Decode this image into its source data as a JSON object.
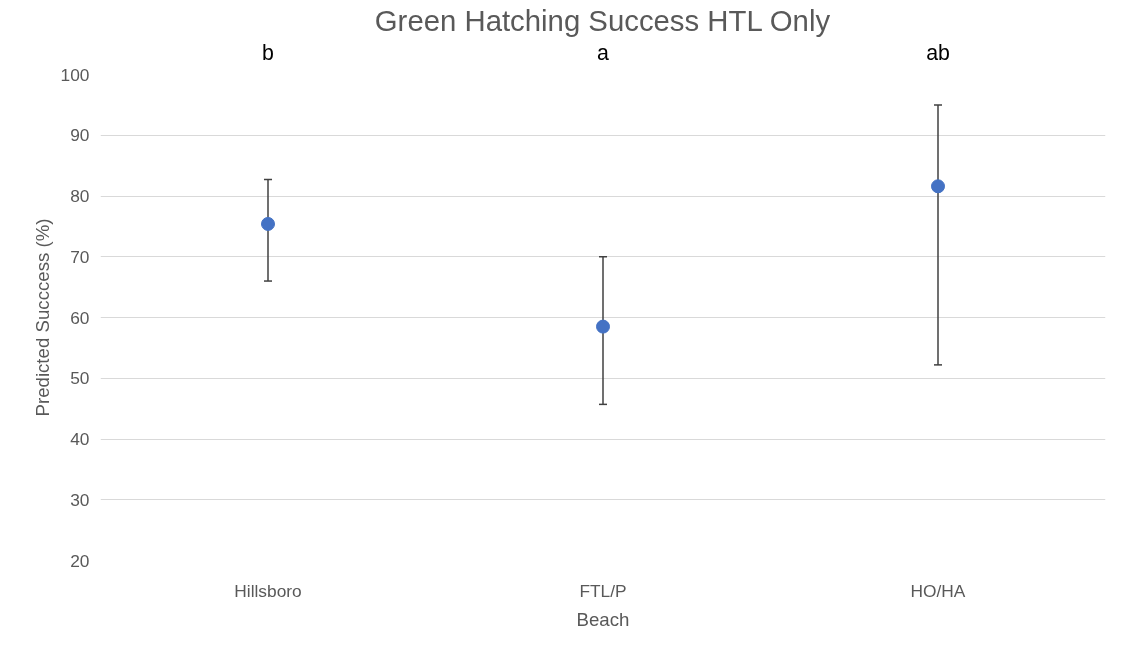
{
  "chart_data": {
    "type": "scatter",
    "title": "Green Hatching Success HTL Only",
    "xlabel": "Beach",
    "ylabel": "Predicted Succcess (%)",
    "categories": [
      "Hillsboro",
      "FTL/P",
      "HO/HA"
    ],
    "series": [
      {
        "color": "#4472c4",
        "values": [
          75.4,
          58.5,
          81.6
        ],
        "errors": [
          [
            66.0,
            82.7
          ],
          [
            45.7,
            70.0
          ],
          [
            52.2,
            95.0
          ]
        ]
      }
    ],
    "annotations": [
      "b",
      "a",
      "ab"
    ],
    "ylim": [
      20,
      100
    ],
    "yticks": [
      20,
      30,
      40,
      50,
      60,
      70,
      80,
      90,
      100
    ],
    "grid": "y",
    "marker": "circle"
  }
}
